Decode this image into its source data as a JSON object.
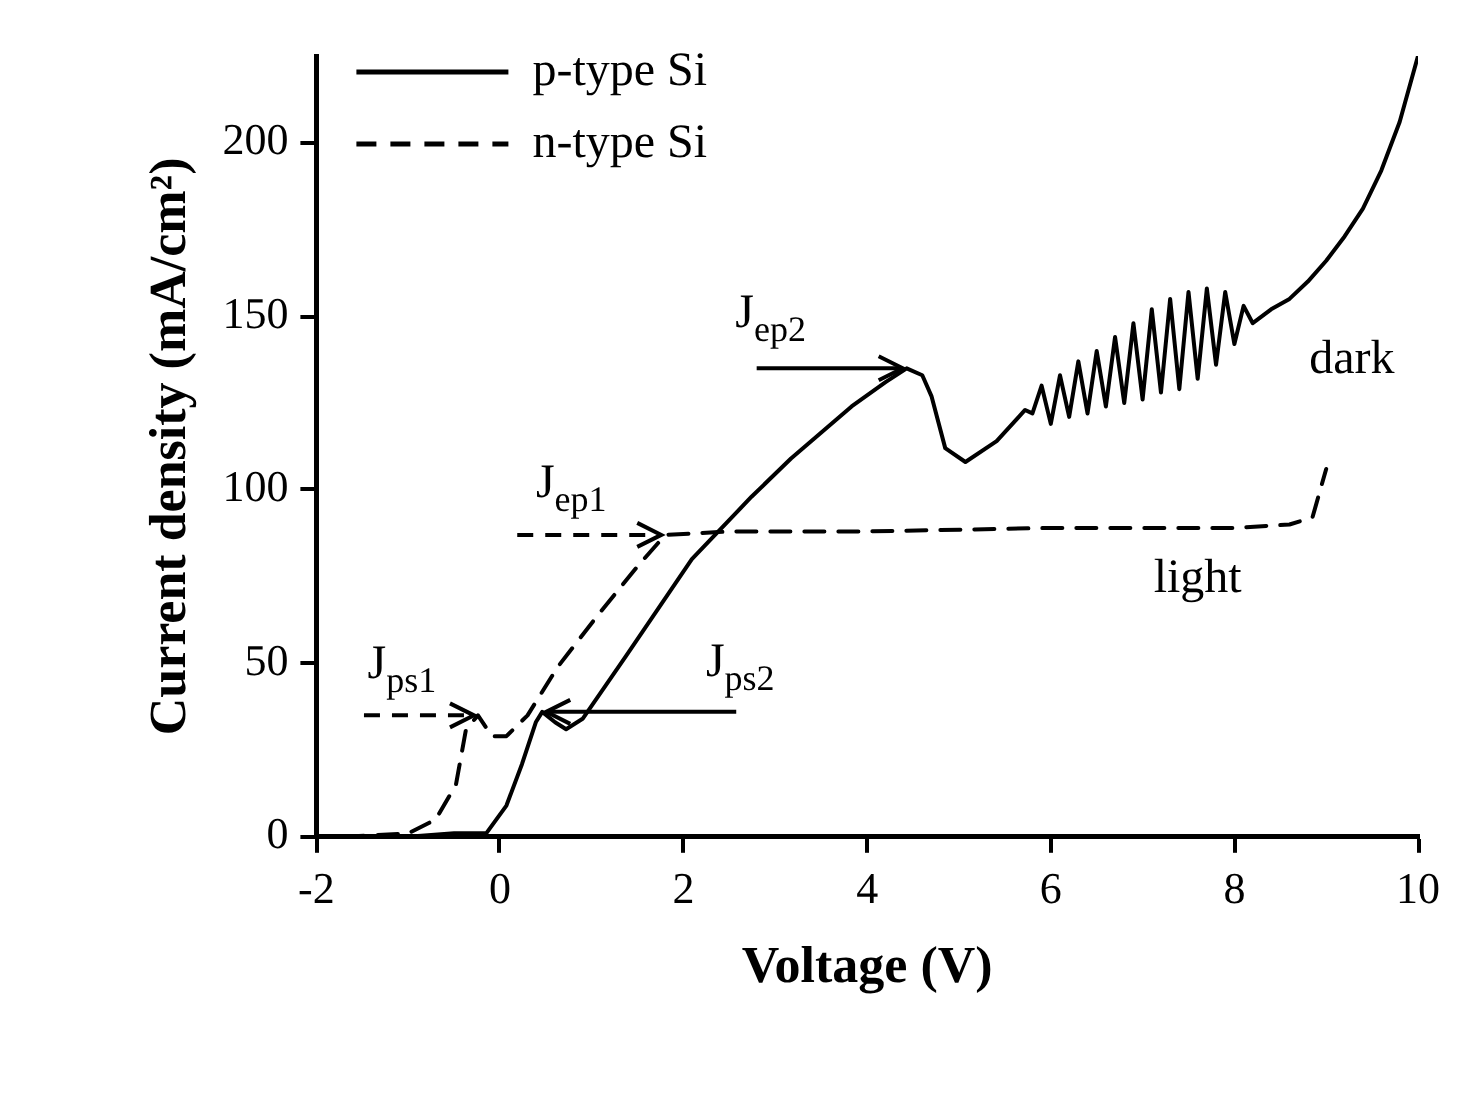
{
  "chart_data": {
    "type": "line",
    "xlabel": "Voltage (V)",
    "ylabel": "Current density (mA/cm²)",
    "xlim": [
      -2,
      10
    ],
    "xticks": [
      -2,
      0,
      2,
      4,
      6,
      8,
      10
    ],
    "ylim": [
      0,
      225
    ],
    "yticks": [
      0,
      50,
      100,
      150,
      200
    ],
    "grid": false,
    "legend": "top left",
    "marker": "none",
    "series": [
      {
        "name": "p-type Si",
        "color": "#000000",
        "line_style": "solid",
        "x": [
          -1.7,
          -1.0,
          -0.5,
          -0.15,
          0.07,
          0.24,
          0.39,
          0.46,
          0.6,
          0.72,
          0.9,
          1.37,
          2.09,
          2.74,
          3.17,
          3.83,
          4.2,
          4.43,
          4.6,
          4.7,
          4.85,
          5.07,
          5.41,
          5.72,
          5.8,
          5.9,
          6.0,
          6.1,
          6.2,
          6.3,
          6.4,
          6.5,
          6.6,
          6.7,
          6.8,
          6.9,
          7.0,
          7.1,
          7.2,
          7.3,
          7.4,
          7.5,
          7.6,
          7.7,
          7.8,
          7.9,
          8.0,
          8.1,
          8.2,
          8.4,
          8.6,
          8.8,
          9.0,
          9.2,
          9.4,
          9.6,
          9.8,
          10.0
        ],
        "values": [
          0,
          0,
          1,
          1,
          9,
          21,
          33,
          36,
          33,
          31,
          34,
          52,
          80,
          98,
          109,
          124,
          131,
          135,
          133,
          127,
          112,
          108,
          114,
          123,
          122,
          130,
          119,
          133,
          121,
          137,
          122,
          140,
          124,
          144,
          125,
          148,
          126,
          152,
          128,
          155,
          129,
          157,
          132,
          158,
          136,
          157,
          142,
          153,
          148,
          152,
          155,
          160,
          166,
          173,
          181,
          192,
          206,
          225
        ]
      },
      {
        "name": "n-type Si",
        "color": "#000000",
        "line_style": "dashed",
        "x": [
          -1.7,
          -1.0,
          -0.7,
          -0.48,
          -0.37,
          -0.24,
          -0.09,
          0.07,
          0.3,
          0.63,
          1.07,
          1.5,
          1.8,
          2.5,
          4,
          6,
          8,
          8.6,
          8.85,
          9.0
        ],
        "values": [
          0,
          1,
          5,
          15,
          31,
          35,
          29,
          29,
          35,
          49,
          64,
          78,
          87,
          88,
          88,
          89,
          89,
          90,
          92,
          106
        ]
      }
    ],
    "annotations": [
      {
        "text": "J$_{ps1}$",
        "x": -0.24,
        "y": 35
      },
      {
        "text": "J$_{ps2}$",
        "x": 0.46,
        "y": 36
      },
      {
        "text": "J$_{ep1}$",
        "x": 1.8,
        "y": 87
      },
      {
        "text": "J$_{ep2}$",
        "x": 4.43,
        "y": 135
      },
      "light",
      "dark"
    ]
  }
}
